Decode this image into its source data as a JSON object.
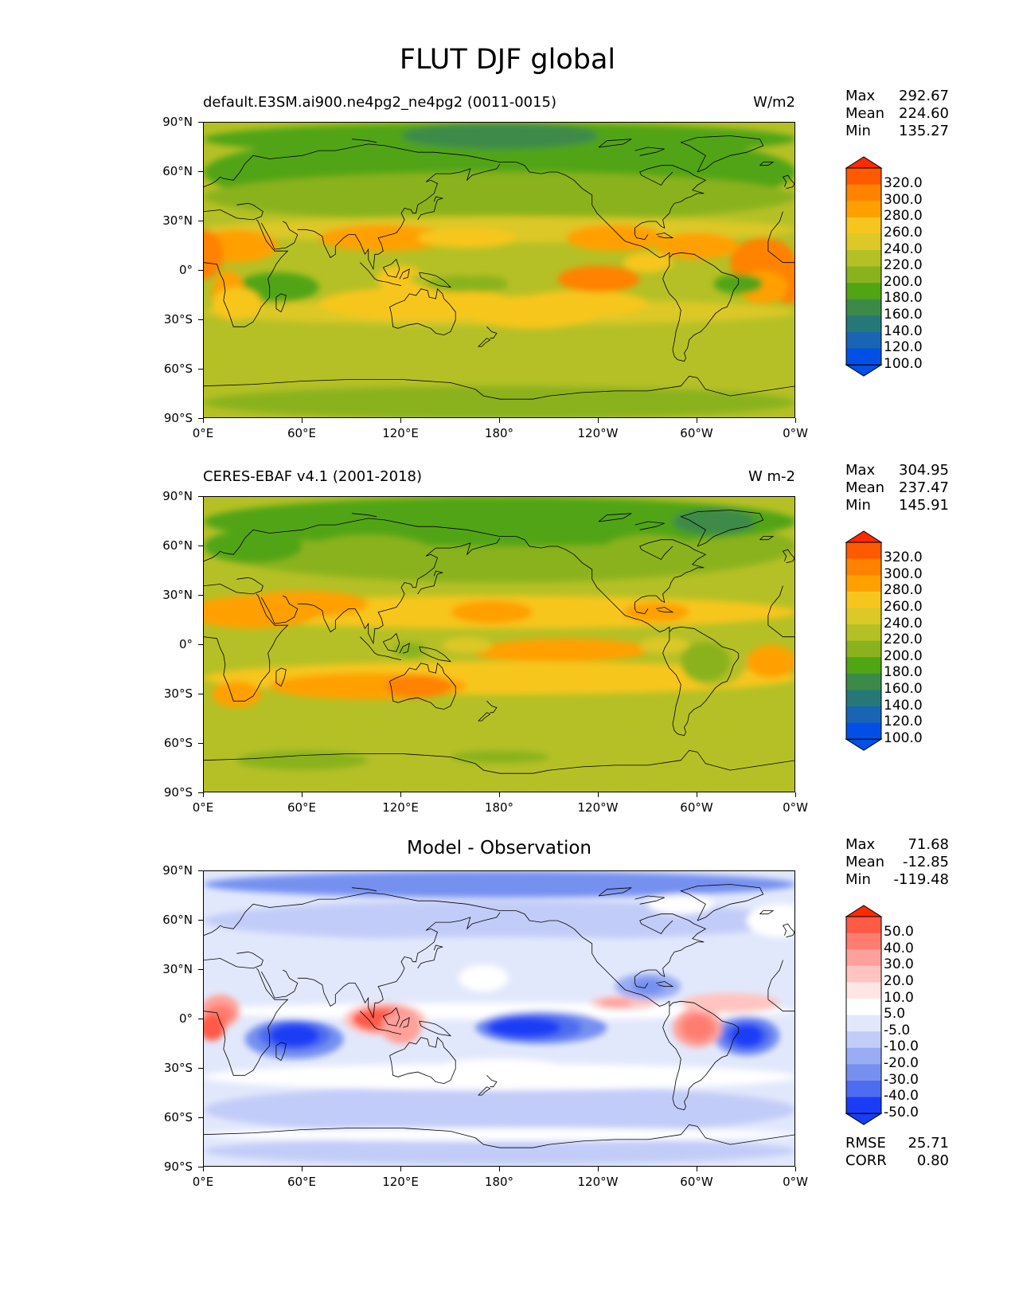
{
  "title": "FLUT DJF global",
  "axes": {
    "x_ticks": [
      "0°E",
      "60°E",
      "120°E",
      "180°",
      "120°W",
      "60°W",
      "0°W"
    ],
    "y_ticks": [
      "90°N",
      "60°N",
      "30°N",
      "0°",
      "30°S",
      "60°S",
      "90°S"
    ]
  },
  "panels": [
    {
      "title_left": "default.E3SM.ai900.ne4pg2_ne4pg2 (0011-0015)",
      "title_right": "W/m2",
      "title_center": "",
      "stats": [
        {
          "label": "Max",
          "value": "292.67"
        },
        {
          "label": "Mean",
          "value": "224.60"
        },
        {
          "label": "Min",
          "value": "135.27"
        }
      ],
      "colorbar_labels": [
        "320.0",
        "300.0",
        "280.0",
        "260.0",
        "240.0",
        "220.0",
        "200.0",
        "180.0",
        "160.0",
        "140.0",
        "120.0",
        "100.0"
      ],
      "colorbar_colors": [
        "#ff2a00",
        "#ff5a00",
        "#ff8200",
        "#ffa000",
        "#f7c61e",
        "#dcc826",
        "#b5c026",
        "#8ab21e",
        "#51a414",
        "#3c8a4a",
        "#267878",
        "#1a64b4",
        "#0050e6"
      ],
      "extra_stats": []
    },
    {
      "title_left": "CERES-EBAF v4.1 (2001-2018)",
      "title_right": "W m-2",
      "title_center": "",
      "stats": [
        {
          "label": "Max",
          "value": "304.95"
        },
        {
          "label": "Mean",
          "value": "237.47"
        },
        {
          "label": "Min",
          "value": "145.91"
        }
      ],
      "colorbar_labels": [
        "320.0",
        "300.0",
        "280.0",
        "260.0",
        "240.0",
        "220.0",
        "200.0",
        "180.0",
        "160.0",
        "140.0",
        "120.0",
        "100.0"
      ],
      "colorbar_colors": [
        "#ff2a00",
        "#ff5a00",
        "#ff8200",
        "#ffa000",
        "#f7c61e",
        "#dcc826",
        "#b5c026",
        "#8ab21e",
        "#51a414",
        "#3c8a4a",
        "#267878",
        "#1a64b4",
        "#0050e6"
      ],
      "extra_stats": []
    },
    {
      "title_left": "",
      "title_right": "",
      "title_center": "Model - Observation",
      "stats": [
        {
          "label": "Max",
          "value": "71.68"
        },
        {
          "label": "Mean",
          "value": "-12.85"
        },
        {
          "label": "Min",
          "value": "-119.48"
        }
      ],
      "colorbar_labels": [
        "50.0",
        "40.0",
        "30.0",
        "20.0",
        "10.0",
        "5.0",
        "-5.0",
        "-10.0",
        "-20.0",
        "-30.0",
        "-40.0",
        "-50.0"
      ],
      "colorbar_colors": [
        "#ff2a00",
        "#ff5a46",
        "#ff7d70",
        "#ffa19a",
        "#ffc4c0",
        "#ffe6e4",
        "#ffffff",
        "#e2e8fc",
        "#c2ccf8",
        "#9aacf4",
        "#7690f0",
        "#4e6cf0",
        "#1a3cf6"
      ],
      "extra_stats": [
        {
          "label": "RMSE",
          "value": "25.71"
        },
        {
          "label": "CORR",
          "value": "0.80"
        }
      ]
    }
  ]
}
